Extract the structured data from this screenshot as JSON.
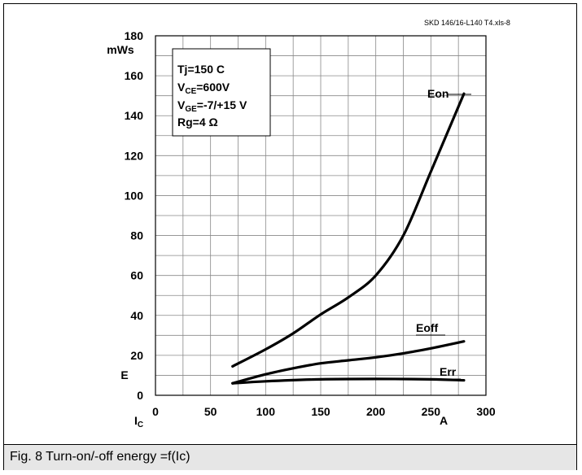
{
  "caption": "Fig. 8 Turn-on/-off energy =f(Ic)",
  "file_label": "SKD 146/16-L140 T4.xls-8",
  "chart_data": {
    "type": "line",
    "xlim": [
      0,
      300
    ],
    "ylim": [
      0,
      180
    ],
    "x_ticks": [
      0,
      50,
      100,
      150,
      200,
      250,
      300
    ],
    "y_ticks": [
      0,
      20,
      40,
      60,
      80,
      100,
      120,
      140,
      160,
      180
    ],
    "x_unit": "A",
    "x_symbol": "I",
    "x_symbol_sub": "C",
    "y_unit": "mWs",
    "y_symbol": "E",
    "grid": true,
    "conditions": {
      "line1": "Tj=150  C",
      "line2_main": "V",
      "line2_sub": "CE",
      "line2_val": "=600V",
      "line3_main": "V",
      "line3_sub": "GE",
      "line3_val": "=-7/+15 V",
      "line4": "Rg=4 Ω"
    },
    "series": [
      {
        "name": "Eon",
        "x": [
          70,
          100,
          125,
          150,
          175,
          200,
          225,
          250,
          280
        ],
        "y": [
          14.5,
          23,
          31,
          40.5,
          49,
          60,
          80,
          112,
          151
        ]
      },
      {
        "name": "Eoff",
        "x": [
          70,
          100,
          125,
          150,
          175,
          200,
          225,
          250,
          280
        ],
        "y": [
          6,
          10.5,
          13.5,
          16,
          17.5,
          19,
          21,
          23.5,
          27
        ]
      },
      {
        "name": "Err",
        "x": [
          70,
          100,
          150,
          200,
          250,
          280
        ],
        "y": [
          6,
          7,
          8,
          8.2,
          8,
          7.5
        ]
      }
    ]
  }
}
